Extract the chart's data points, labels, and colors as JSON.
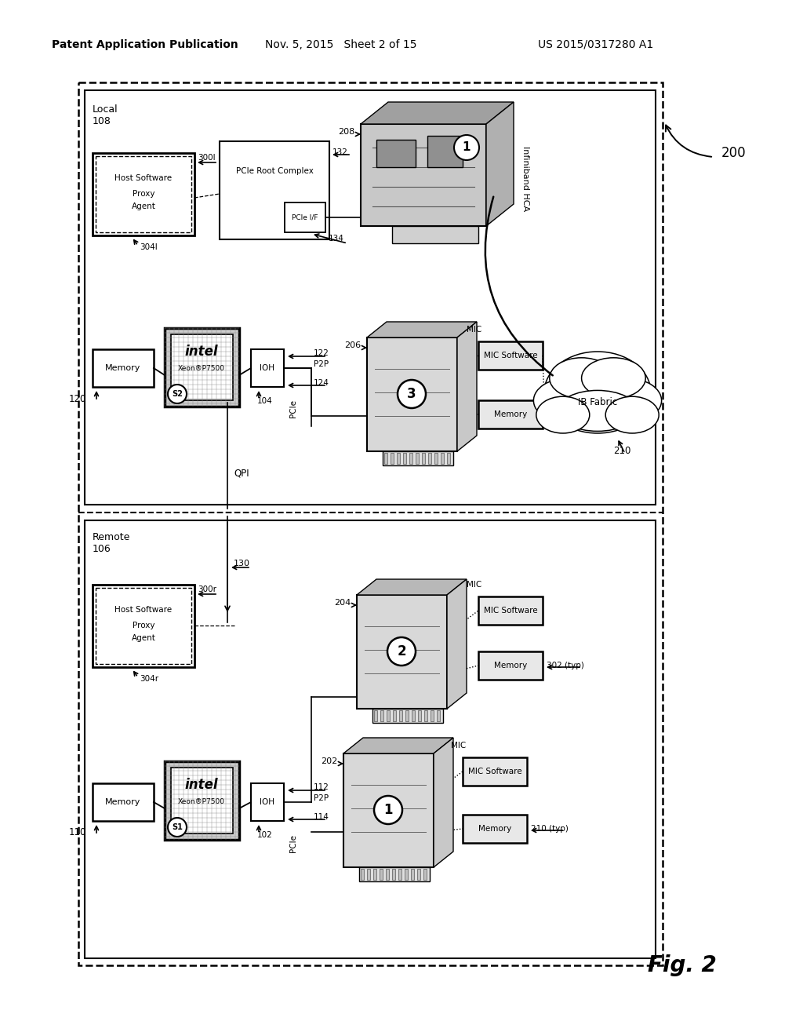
{
  "bg_color": "#ffffff",
  "header_left": "Patent Application Publication",
  "header_mid": "Nov. 5, 2015   Sheet 2 of 15",
  "header_right": "US 2015/0317280 A1"
}
